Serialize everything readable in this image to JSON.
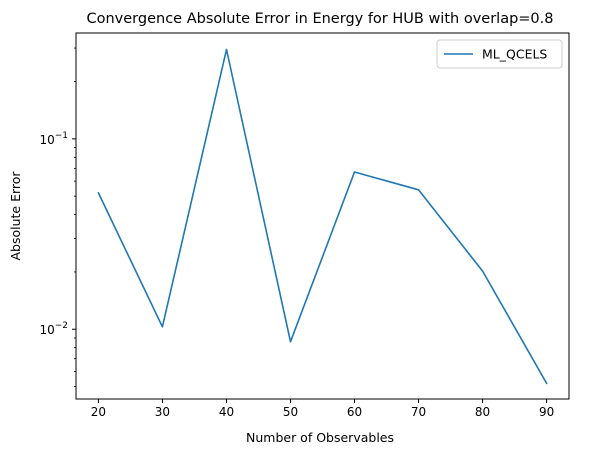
{
  "chart_data": {
    "type": "line",
    "title": "Convergence Absolute Error in Energy for HUB with overlap=0.8",
    "xlabel": "Number of Observables",
    "ylabel": "Absolute Error",
    "yscale": "log",
    "x": [
      20,
      30,
      40,
      50,
      60,
      70,
      80,
      90
    ],
    "xticks": [
      "20",
      "30",
      "40",
      "50",
      "60",
      "70",
      "80",
      "90"
    ],
    "yticks": [
      {
        "base": "10",
        "exp": "−2"
      },
      {
        "base": "10",
        "exp": "−1"
      }
    ],
    "series": [
      {
        "name": "ML_QCELS",
        "color": "#1f77b4",
        "values": [
          0.052,
          0.0103,
          0.295,
          0.0086,
          0.067,
          0.054,
          0.0202,
          0.0052
        ]
      }
    ],
    "xlim": [
      16.5,
      93.5
    ],
    "ylim": [
      0.0043,
      0.36
    ],
    "grid": false,
    "legend": "upper right"
  }
}
